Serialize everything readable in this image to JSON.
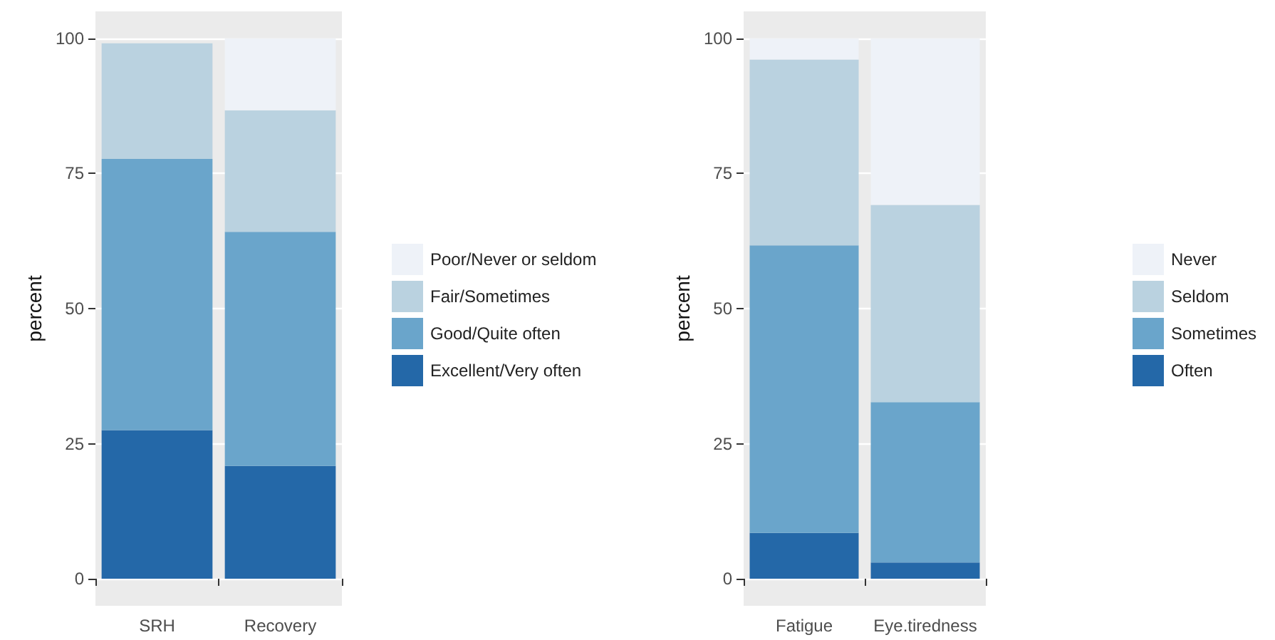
{
  "chart_data": [
    {
      "type": "bar",
      "stacked": true,
      "categories": [
        "SRH",
        "Recovery"
      ],
      "ylabel": "percent",
      "ylim": [
        -5,
        105
      ],
      "yticks": [
        0,
        25,
        50,
        75,
        100
      ],
      "grid": "y",
      "legend": "right",
      "series": [
        {
          "name": "Excellent/Very often",
          "color": "#2468a8",
          "values": [
            27.5,
            20.9
          ]
        },
        {
          "name": "Good/Quite often",
          "color": "#6aa5cb",
          "values": [
            50.2,
            43.3
          ]
        },
        {
          "name": "Fair/Sometimes",
          "color": "#bad2e0",
          "values": [
            21.4,
            22.5
          ]
        },
        {
          "name": "Poor/Never or seldom",
          "color": "#eef2f8",
          "values": [
            null,
            13.3
          ]
        }
      ]
    },
    {
      "type": "bar",
      "stacked": true,
      "categories": [
        "Fatigue",
        "Eye.tiredness"
      ],
      "ylabel": "percent",
      "ylim": [
        -5,
        105
      ],
      "yticks": [
        0,
        25,
        50,
        75,
        100
      ],
      "grid": "y",
      "legend": "right",
      "series": [
        {
          "name": "Often",
          "color": "#2468a8",
          "values": [
            8.5,
            3.0
          ]
        },
        {
          "name": "Sometimes",
          "color": "#6aa5cb",
          "values": [
            53.2,
            29.7
          ]
        },
        {
          "name": "Seldom",
          "color": "#bad2e0",
          "values": [
            34.4,
            36.5
          ]
        },
        {
          "name": "Never",
          "color": "#eef2f8",
          "values": [
            3.9,
            30.8
          ]
        }
      ]
    }
  ]
}
